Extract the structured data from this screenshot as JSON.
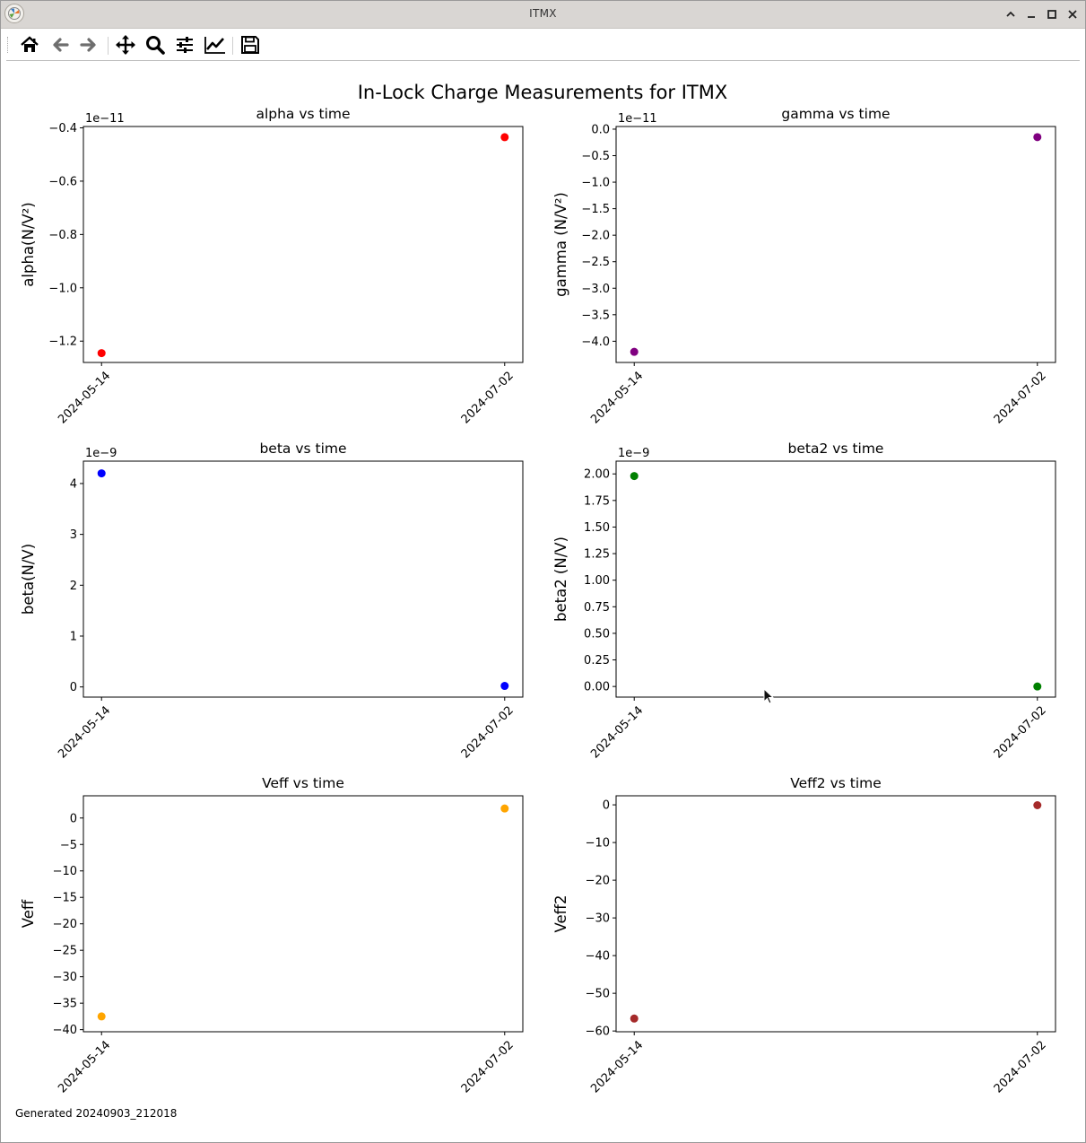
{
  "window": {
    "title": "ITMX"
  },
  "toolbar": {
    "buttons": [
      {
        "name": "home-button",
        "icon": "home-icon"
      },
      {
        "name": "back-button",
        "icon": "arrow-left-icon"
      },
      {
        "name": "forward-button",
        "icon": "arrow-right-icon"
      },
      {
        "name": "pan-button",
        "icon": "move-icon"
      },
      {
        "name": "zoom-button",
        "icon": "magnifier-icon"
      },
      {
        "name": "configure-subplots-button",
        "icon": "sliders-icon"
      },
      {
        "name": "edit-axis-button",
        "icon": "chart-line-icon"
      },
      {
        "name": "save-button",
        "icon": "floppy-icon"
      }
    ]
  },
  "figure": {
    "suptitle": "In-Lock Charge Measurements for ITMX",
    "footer": "Generated 20240903_212018"
  },
  "chart_data": [
    {
      "type": "scatter",
      "title": "alpha vs time",
      "ylabel": "alpha(N/V²)",
      "offset_text": "1e−11",
      "x": [
        "2024-05-14",
        "2024-07-02"
      ],
      "y": [
        -1.245,
        -0.435
      ],
      "ylim": [
        -1.28,
        -0.395
      ],
      "yticks": [
        -1.2,
        -1.0,
        -0.8,
        -0.6,
        -0.4
      ],
      "yticklabels": [
        "−1.2",
        "−1.0",
        "−0.8",
        "−0.6",
        "−0.4"
      ],
      "color": "#ff0000"
    },
    {
      "type": "scatter",
      "title": "gamma vs time",
      "ylabel": "gamma (N/V²)",
      "offset_text": "1e−11",
      "x": [
        "2024-05-14",
        "2024-07-02"
      ],
      "y": [
        -4.2,
        -0.15
      ],
      "ylim": [
        -4.4,
        0.05
      ],
      "yticks": [
        -4.0,
        -3.5,
        -3.0,
        -2.5,
        -2.0,
        -1.5,
        -1.0,
        -0.5,
        0.0
      ],
      "yticklabels": [
        "−4.0",
        "−3.5",
        "−3.0",
        "−2.5",
        "−2.0",
        "−1.5",
        "−1.0",
        "−0.5",
        "0.0"
      ],
      "color": "#800080"
    },
    {
      "type": "scatter",
      "title": "beta vs time",
      "ylabel": "beta(N/V)",
      "offset_text": "1e−9",
      "x": [
        "2024-05-14",
        "2024-07-02"
      ],
      "y": [
        4.2,
        0.02
      ],
      "ylim": [
        -0.2,
        4.44
      ],
      "yticks": [
        0,
        1,
        2,
        3,
        4
      ],
      "yticklabels": [
        "0",
        "1",
        "2",
        "3",
        "4"
      ],
      "color": "#0000ff"
    },
    {
      "type": "scatter",
      "title": "beta2 vs time",
      "ylabel": "beta2 (N/V)",
      "offset_text": "1e−9",
      "x": [
        "2024-05-14",
        "2024-07-02"
      ],
      "y": [
        1.98,
        0.0
      ],
      "ylim": [
        -0.1,
        2.12
      ],
      "yticks": [
        0.0,
        0.25,
        0.5,
        0.75,
        1.0,
        1.25,
        1.5,
        1.75,
        2.0
      ],
      "yticklabels": [
        "0.00",
        "0.25",
        "0.50",
        "0.75",
        "1.00",
        "1.25",
        "1.50",
        "1.75",
        "2.00"
      ],
      "color": "#008000"
    },
    {
      "type": "scatter",
      "title": "Veff vs time",
      "ylabel": "Veff",
      "offset_text": "",
      "x": [
        "2024-05-14",
        "2024-07-02"
      ],
      "y": [
        -37.5,
        1.8
      ],
      "ylim": [
        -40.4,
        4.2
      ],
      "yticks": [
        -40,
        -35,
        -30,
        -25,
        -20,
        -15,
        -10,
        -5,
        0
      ],
      "yticklabels": [
        "−40",
        "−35",
        "−30",
        "−25",
        "−20",
        "−15",
        "−10",
        "−5",
        "0"
      ],
      "color": "#ffa500"
    },
    {
      "type": "scatter",
      "title": "Veff2 vs time",
      "ylabel": "Veff2",
      "offset_text": "",
      "x": [
        "2024-05-14",
        "2024-07-02"
      ],
      "y": [
        -56.7,
        -0.1
      ],
      "ylim": [
        -60.2,
        2.4
      ],
      "yticks": [
        -60,
        -50,
        -40,
        -30,
        -20,
        -10,
        0
      ],
      "yticklabels": [
        "−60",
        "−50",
        "−40",
        "−30",
        "−20",
        "−10",
        "0"
      ],
      "color": "#a52a2a"
    }
  ]
}
